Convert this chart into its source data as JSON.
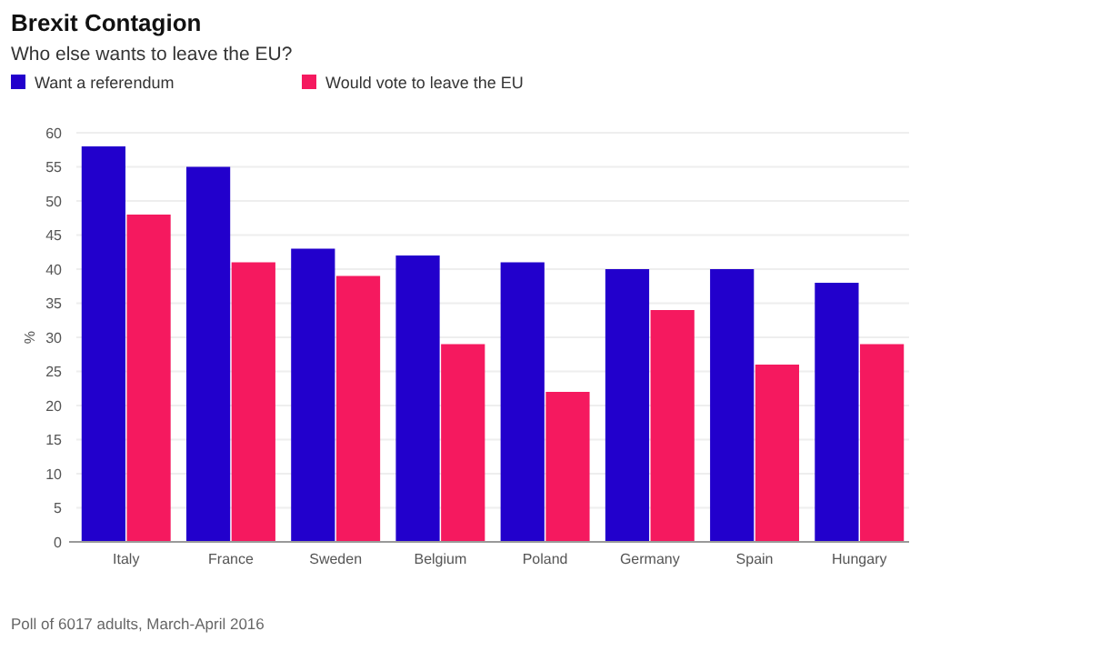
{
  "chart_data": {
    "type": "bar",
    "title": "Brexit Contagion",
    "subtitle": "Who else wants to leave the EU?",
    "ylabel": "%",
    "categories": [
      "Italy",
      "France",
      "Sweden",
      "Belgium",
      "Poland",
      "Germany",
      "Spain",
      "Hungary"
    ],
    "series": [
      {
        "name": "Want a referendum",
        "color": "#2200cc",
        "values": [
          58,
          55,
          43,
          42,
          41,
          40,
          40,
          38
        ]
      },
      {
        "name": "Would vote to leave the EU",
        "color": "#f5195f",
        "values": [
          48,
          41,
          39,
          29,
          22,
          34,
          26,
          29
        ]
      }
    ],
    "ylim": [
      0,
      60
    ],
    "yticks": [
      0,
      5,
      10,
      15,
      20,
      25,
      30,
      35,
      40,
      45,
      50,
      55,
      60
    ],
    "grid": "y",
    "legend": "top left",
    "annotations": [
      "Poll of 6017 adults, March-April 2016"
    ]
  }
}
